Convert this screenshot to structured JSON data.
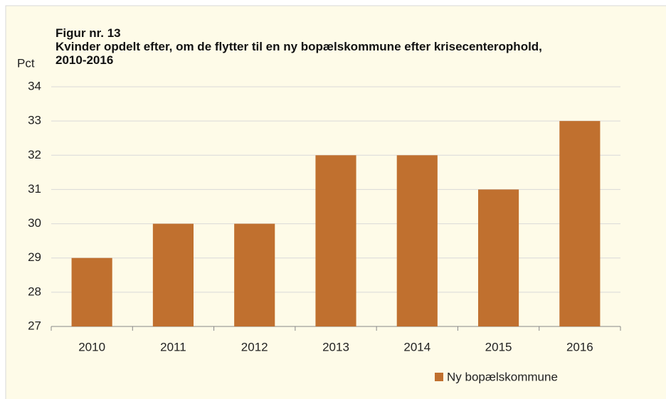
{
  "chart_data": {
    "type": "bar",
    "title": "Figur nr. 13",
    "subtitle": "Kvinder opdelt efter, om de flytter til en ny bopælskommune efter krisecenterophold, 2010-2016",
    "y_label": "Pct",
    "categories": [
      "2010",
      "2011",
      "2012",
      "2013",
      "2014",
      "2015",
      "2016"
    ],
    "series": [
      {
        "name": "Ny bopælskommune",
        "color": "#c0702f",
        "values": [
          29,
          30,
          30,
          32,
          32,
          31,
          33
        ]
      }
    ],
    "ylim": [
      27,
      34
    ],
    "yticks": [
      27,
      28,
      29,
      30,
      31,
      32,
      33,
      34
    ],
    "grid": true,
    "legend": "bottom"
  }
}
